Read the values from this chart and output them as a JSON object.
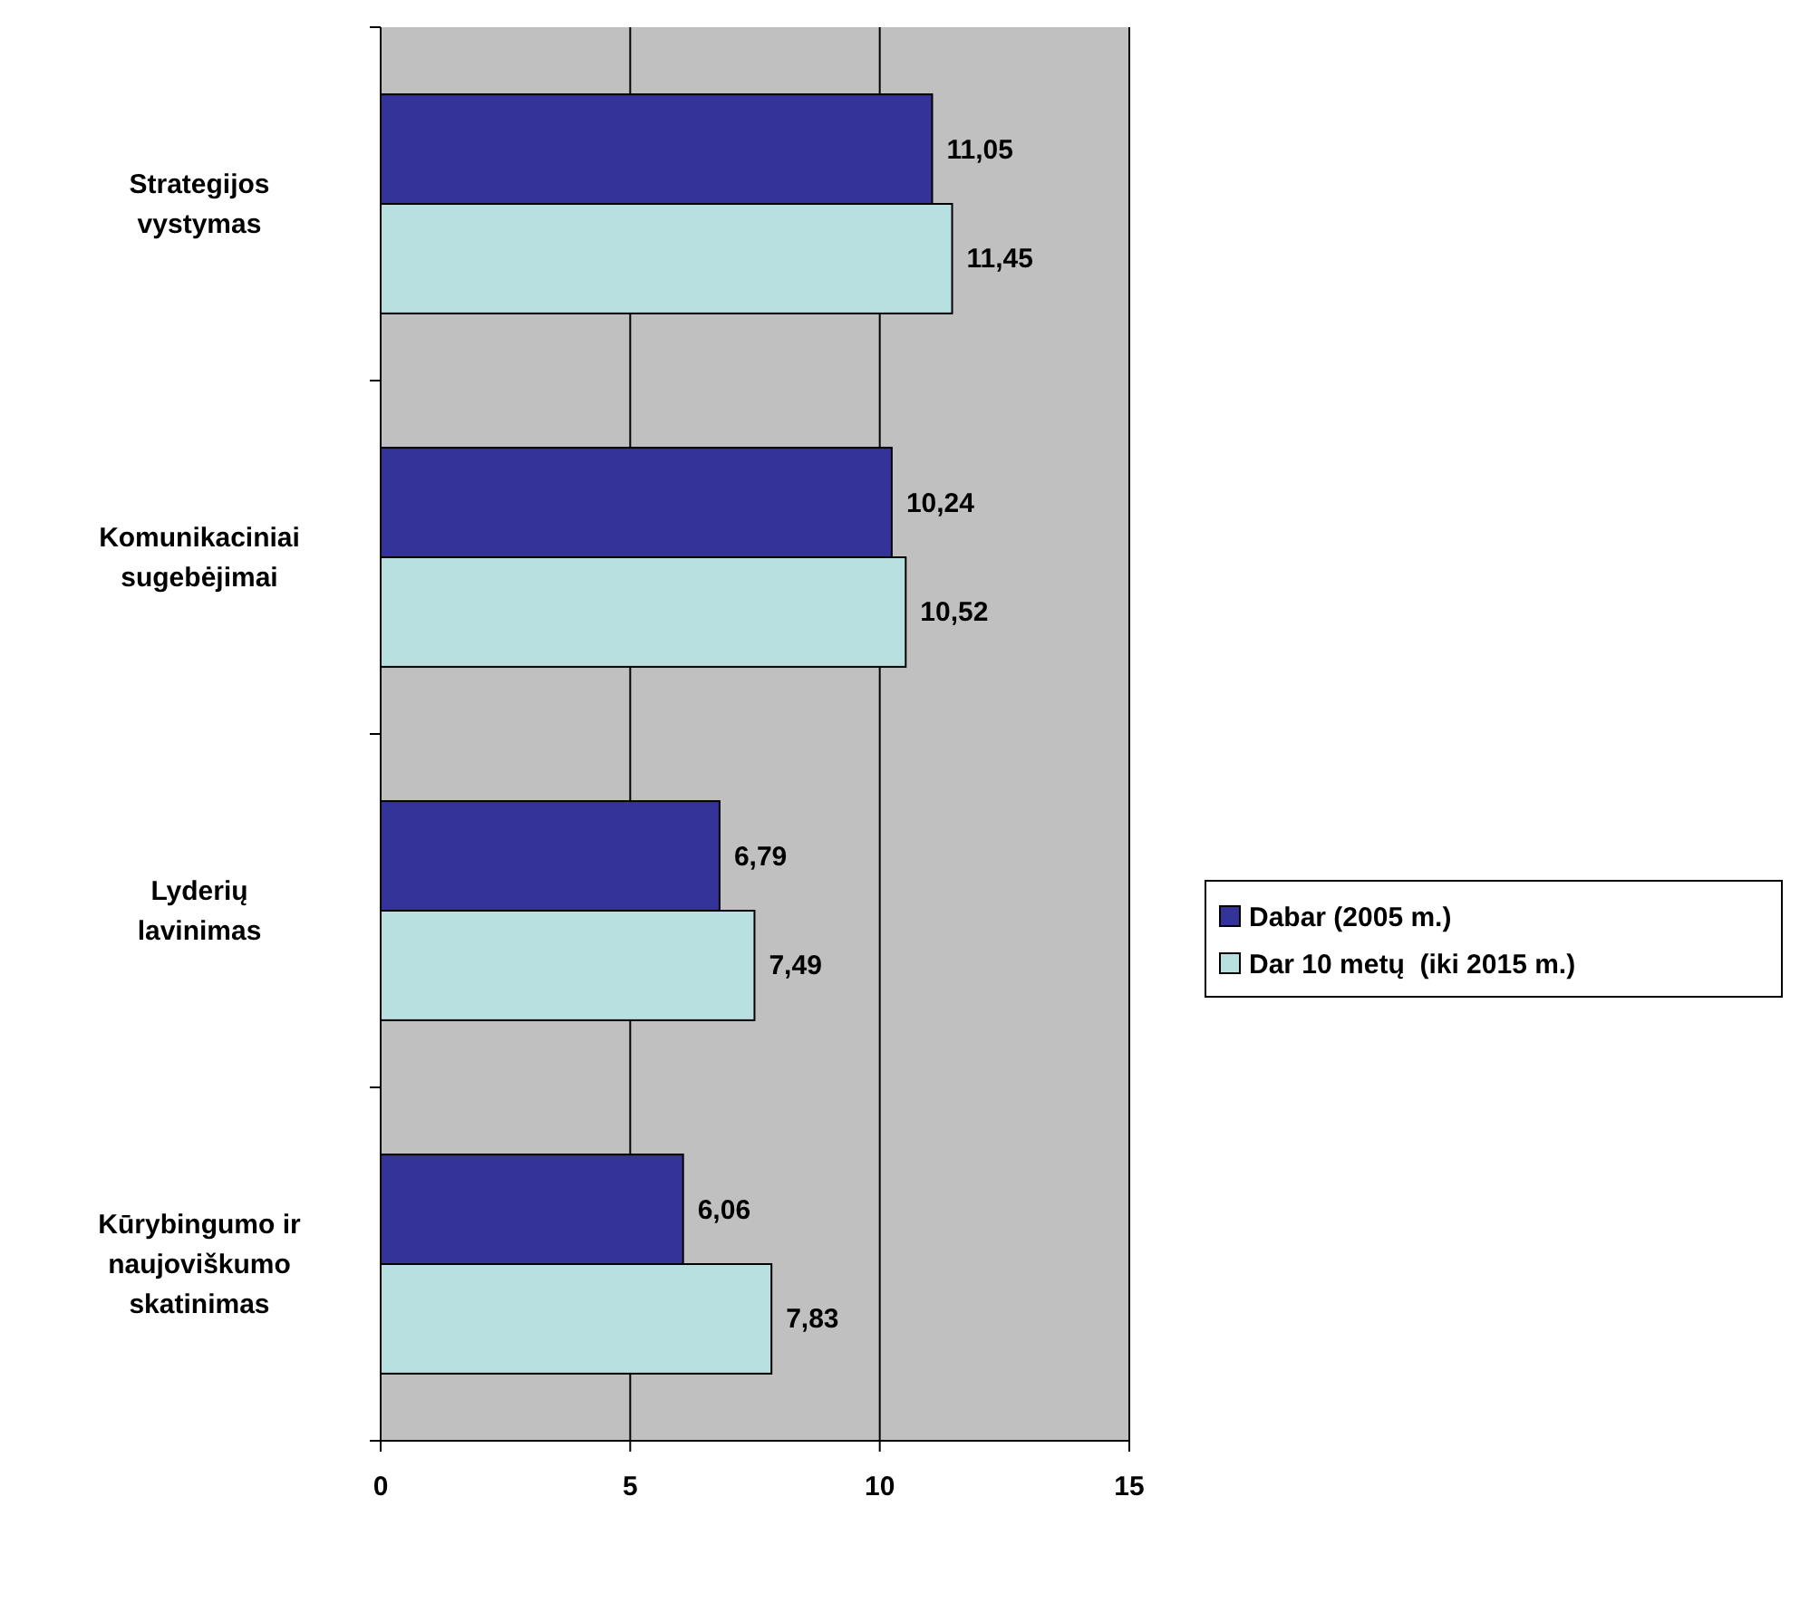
{
  "chart_data": {
    "type": "bar",
    "orientation": "horizontal",
    "categories": [
      "Strategijos vystymas",
      "Komunikaciniai sugebėjimai",
      "Lyderių lavinimas",
      "Kūrybingumo ir naujoviškumo skatinimas"
    ],
    "series": [
      {
        "name": "Dabar (2005 m.)",
        "color": "#333399",
        "values": [
          11.05,
          10.24,
          6.79,
          6.06
        ],
        "value_labels": [
          "11,05",
          "10,24",
          "6,79",
          "6,06"
        ]
      },
      {
        "name": "Dar 10 metų  (iki 2015 m.)",
        "color": "#b8e0e0",
        "values": [
          11.45,
          10.52,
          7.49,
          7.83
        ],
        "value_labels": [
          "11,45",
          "10,52",
          "7,49",
          "7,83"
        ]
      }
    ],
    "xlim": [
      0,
      15
    ],
    "xticks": [
      0,
      5,
      10,
      15
    ],
    "grid": "x",
    "legend": "right"
  }
}
